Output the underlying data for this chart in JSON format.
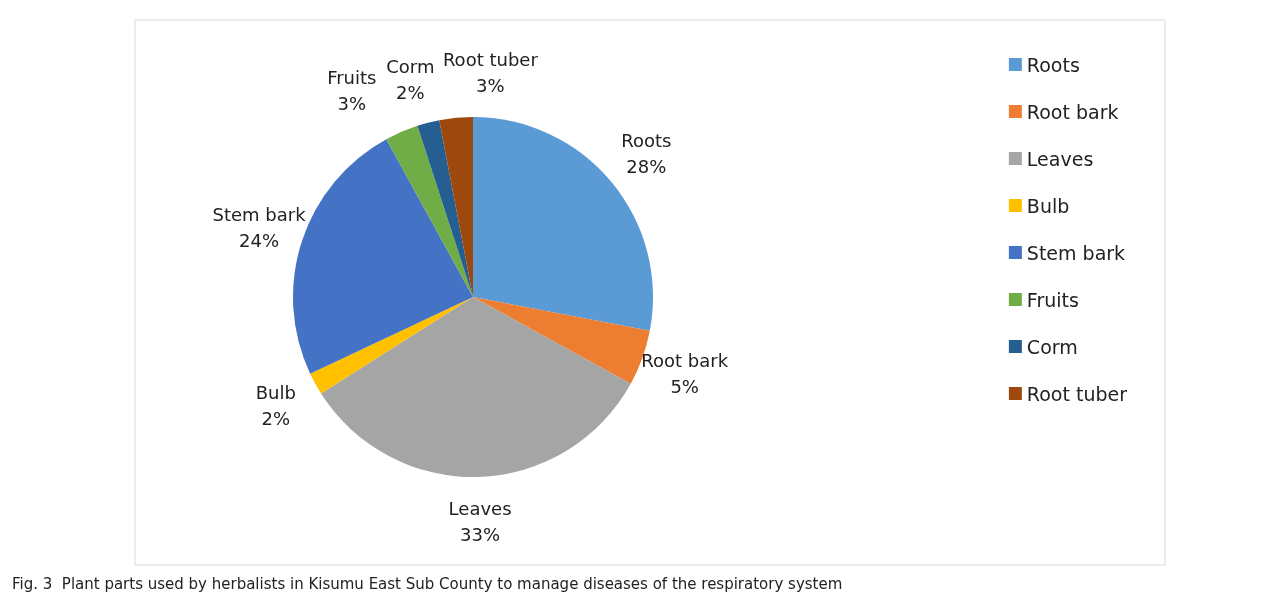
{
  "chart_data": {
    "type": "pie",
    "categories": [
      "Roots",
      "Root bark",
      "Leaves",
      "Bulb",
      "Stem bark",
      "Fruits",
      "Corm",
      "Root tuber"
    ],
    "values": [
      28,
      5,
      33,
      2,
      24,
      3,
      2,
      3
    ],
    "value_labels": [
      "28%",
      "5%",
      "33%",
      "2%",
      "24%",
      "3%",
      "2%",
      "3%"
    ],
    "colors": [
      "#5b9bd5",
      "#ed7d31",
      "#a5a5a5",
      "#ffc000",
      "#4472c4",
      "#70ad47",
      "#255e91",
      "#9e480e"
    ],
    "legend": "right",
    "annotations": [
      "Fig. 3  Plant parts used by herbalists in Kisumu East Sub County to manage diseases of the respiratory system"
    ]
  }
}
